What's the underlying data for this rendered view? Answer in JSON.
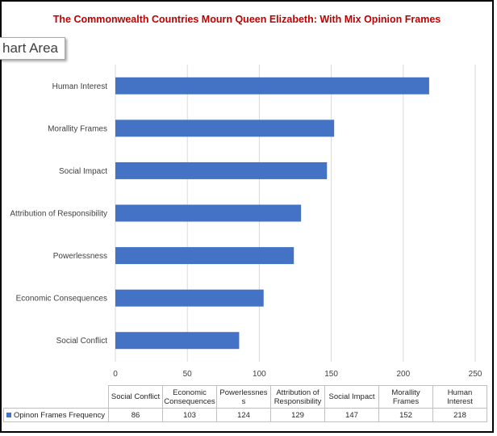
{
  "chart_data": {
    "type": "bar",
    "orientation": "horizontal",
    "title": "The Commonwealth Countries Mourn Queen Elizabeth:  With Mix Opinion Frames",
    "categories": [
      "Human Interest",
      "Morallity Frames",
      "Social Impact",
      "Attribution of Responsibility",
      "Powerlessness",
      "Economic Consequences",
      "Social Conflict"
    ],
    "series": [
      {
        "name": "Opinon Frames Frequency",
        "values": [
          218,
          152,
          147,
          129,
          124,
          103,
          86
        ],
        "color": "#4472c4"
      }
    ],
    "xlim": [
      0,
      250
    ],
    "x_ticks": [
      "0",
      "50",
      "100",
      "150",
      "200",
      "250"
    ],
    "grid": true,
    "data_table": {
      "headers": [
        "Social Conflict",
        "Economic Consequences",
        "Powerlessnes s",
        "Attribution of Responsibility",
        "Social Impact",
        "Morallity Frames",
        "Human Interest"
      ],
      "values": [
        "86",
        "103",
        "124",
        "129",
        "147",
        "152",
        "218"
      ]
    }
  },
  "tooltip": {
    "text": "hart Area"
  }
}
